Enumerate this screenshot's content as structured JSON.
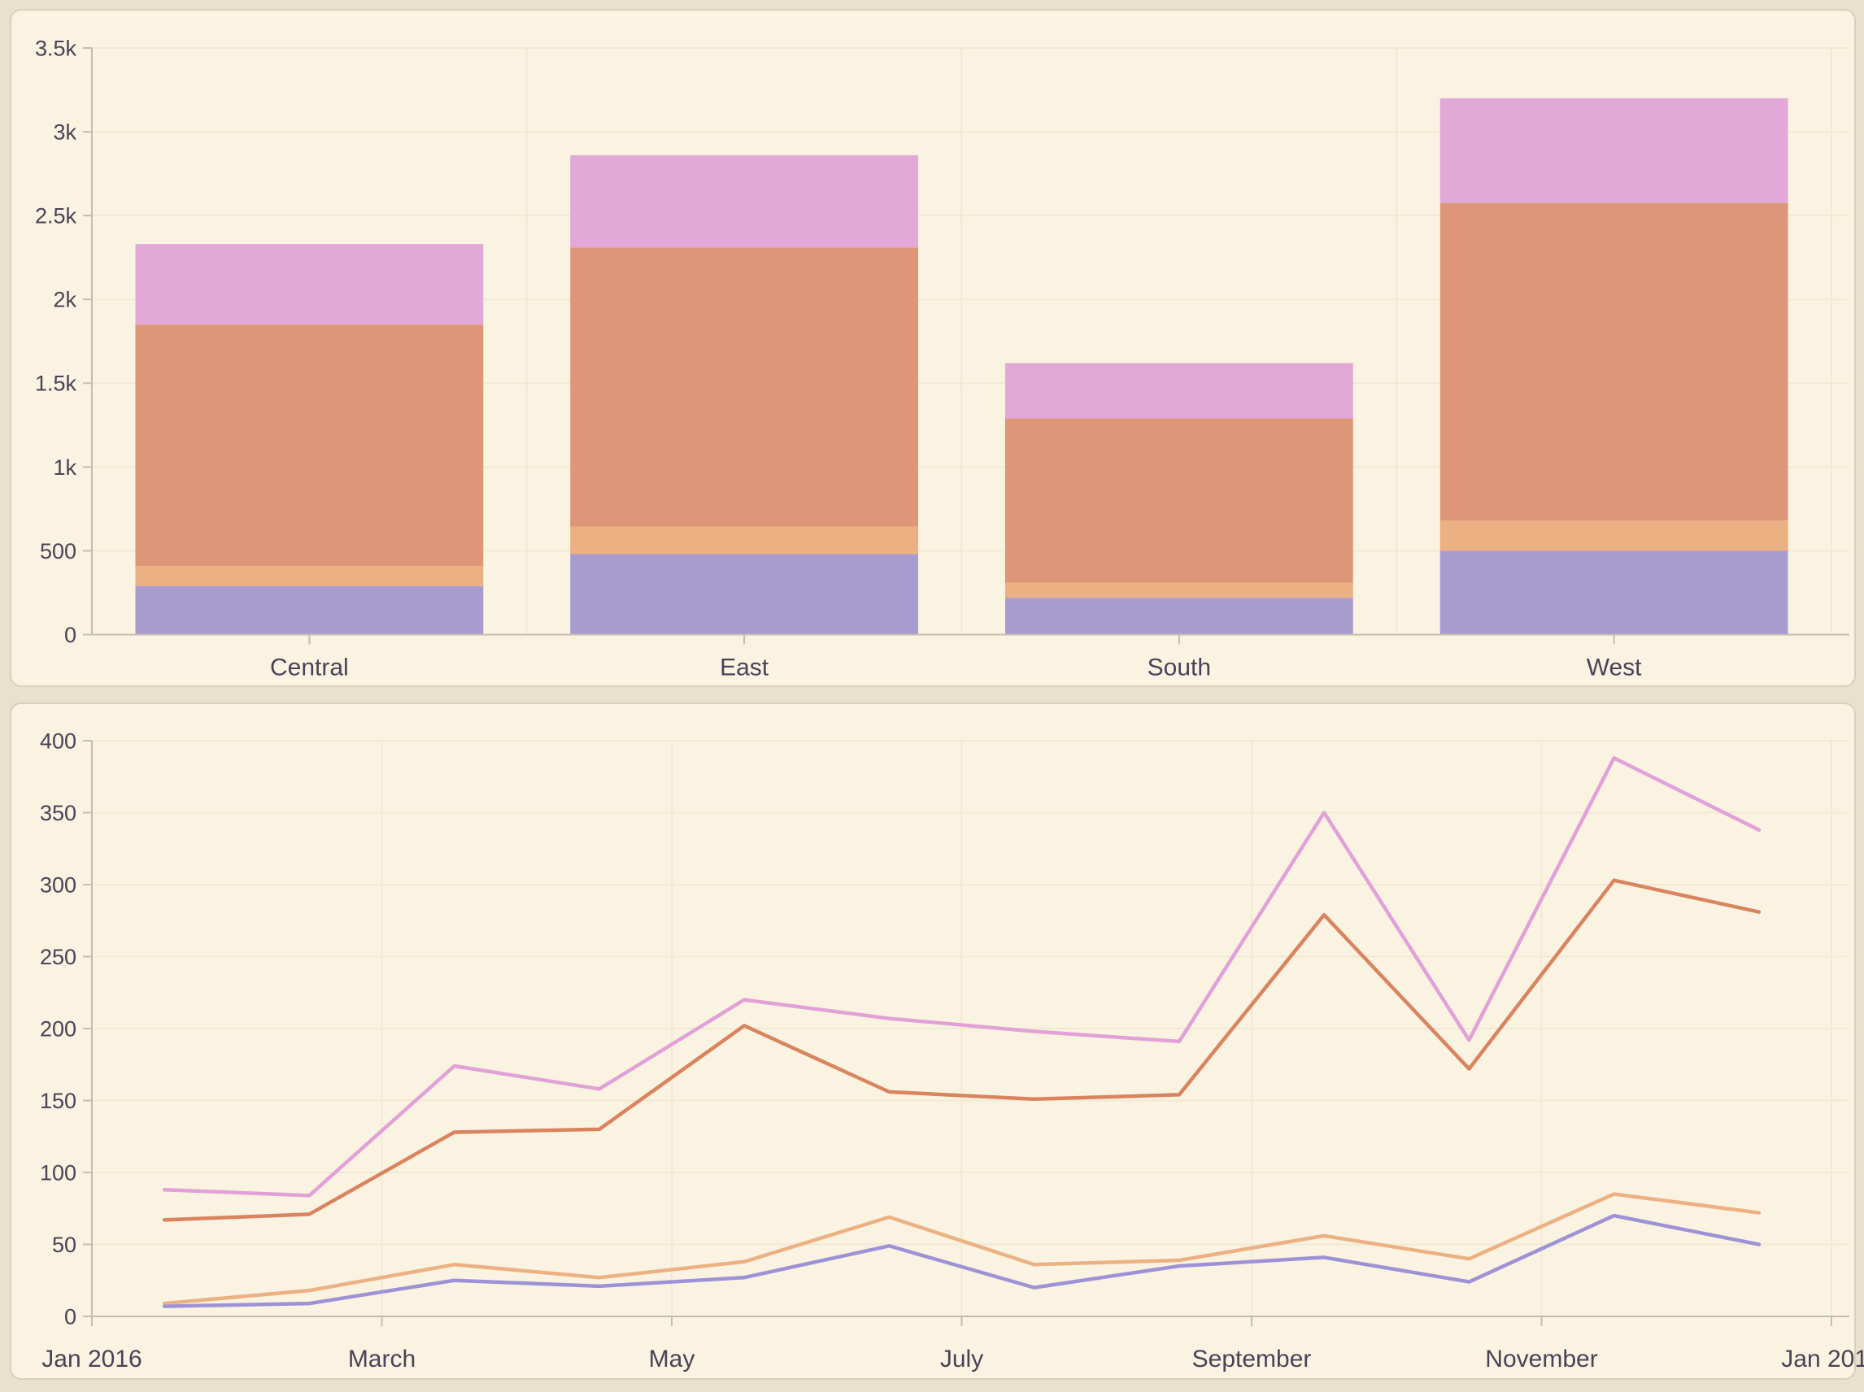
{
  "page": {
    "background": "#e8e1cd",
    "panel_background": "#faf3e1",
    "panel_border": "#d8d0ba",
    "grid_color": "#f1e9d4",
    "axis_color": "#c6beac",
    "text_color": "#4a4257"
  },
  "chart_data": [
    {
      "type": "bar",
      "stacked": true,
      "title": "",
      "categories": [
        "Central",
        "East",
        "South",
        "West"
      ],
      "series": [
        {
          "name": "purple",
          "color": "#a89ccf",
          "values": [
            290,
            480,
            220,
            500
          ]
        },
        {
          "name": "tan",
          "color": "#ebb183",
          "values": [
            120,
            165,
            90,
            180
          ]
        },
        {
          "name": "salmon",
          "color": "#dd9678",
          "values": [
            1440,
            1665,
            980,
            1895
          ]
        },
        {
          "name": "pink",
          "color": "#e2a8d8",
          "values": [
            480,
            550,
            330,
            625
          ]
        }
      ],
      "stack_totals": [
        2330,
        2860,
        1620,
        3200
      ],
      "ylim": [
        0,
        3500
      ],
      "ytick_step": 500,
      "ytick_labels": [
        "0",
        "500",
        "1k",
        "1.5k",
        "2k",
        "2.5k",
        "3k",
        "3.5k"
      ],
      "grid": true,
      "legend": "none"
    },
    {
      "type": "line",
      "title": "",
      "x_months": [
        "Jan",
        "Feb",
        "Mar",
        "Apr",
        "May",
        "Jun",
        "Jul",
        "Aug",
        "Sep",
        "Oct",
        "Nov",
        "Dec"
      ],
      "x_tick_labels": [
        "Jan 2016",
        "March",
        "May",
        "July",
        "September",
        "November",
        "Jan 2017"
      ],
      "series": [
        {
          "name": "violet",
          "color": "#e2a0d8",
          "values": [
            88,
            84,
            174,
            158,
            220,
            207,
            198,
            191,
            350,
            192,
            388,
            338
          ]
        },
        {
          "name": "coral",
          "color": "#d9845f",
          "values": [
            67,
            71,
            128,
            130,
            202,
            156,
            151,
            154,
            279,
            172,
            303,
            281
          ]
        },
        {
          "name": "tan",
          "color": "#ecb183",
          "values": [
            9,
            18,
            36,
            27,
            38,
            69,
            36,
            39,
            56,
            40,
            85,
            72
          ]
        },
        {
          "name": "purple",
          "color": "#9e92d6",
          "values": [
            7,
            9,
            25,
            21,
            27,
            49,
            20,
            35,
            41,
            24,
            70,
            50
          ]
        }
      ],
      "ylim": [
        0,
        400
      ],
      "ytick_step": 50,
      "ytick_labels": [
        "0",
        "50",
        "100",
        "150",
        "200",
        "250",
        "300",
        "350",
        "400"
      ],
      "grid": true,
      "legend": "none"
    }
  ]
}
